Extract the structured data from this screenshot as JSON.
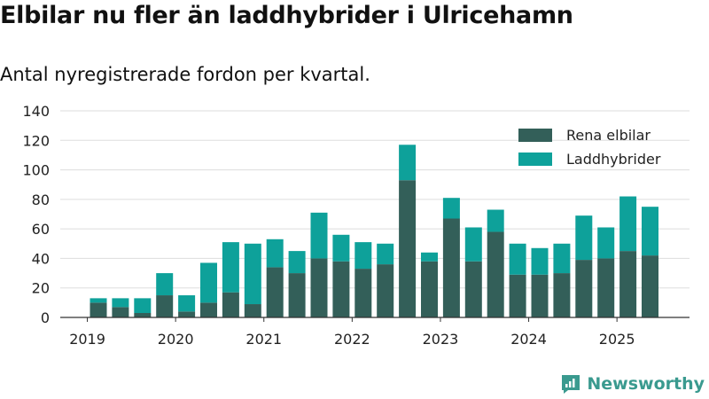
{
  "title": "Elbilar nu fler än laddhybrider i Ulricehamn",
  "subtitle": "Antal nyregistrerade fordon per kvartal.",
  "brand": "Newsworthy",
  "colors": {
    "electric": "#335f59",
    "hybrid": "#0ea19a",
    "grid": "#dddddd",
    "axis": "#333333",
    "text": "#222222"
  },
  "chart_data": {
    "type": "bar",
    "stacked": true,
    "title": "Elbilar nu fler än laddhybrider i Ulricehamn",
    "subtitle": "Antal nyregistrerade fordon per kvartal.",
    "xlabel": "",
    "ylabel": "",
    "ylim": [
      0,
      140
    ],
    "yticks": [
      "0",
      "20",
      "40",
      "60",
      "80",
      "100",
      "120",
      "140"
    ],
    "xtick_labels": [
      "2019",
      "2020",
      "2021",
      "2022",
      "2023",
      "2024",
      "2025"
    ],
    "legend_position": "top-right",
    "categories": [
      "2019 Q2",
      "2019 Q3",
      "2019 Q4",
      "2020 Q1",
      "2020 Q2",
      "2020 Q3",
      "2020 Q4",
      "2021 Q1",
      "2021 Q2",
      "2021 Q3",
      "2021 Q4",
      "2022 Q1",
      "2022 Q2",
      "2022 Q3",
      "2022 Q4",
      "2023 Q1",
      "2023 Q2",
      "2023 Q3",
      "2023 Q4",
      "2024 Q1",
      "2024 Q2",
      "2024 Q3",
      "2024 Q4",
      "2025 Q1",
      "2025 Q2",
      "2025 Q3"
    ],
    "series": [
      {
        "name": "Rena elbilar",
        "values": [
          10,
          7,
          3,
          15,
          4,
          10,
          17,
          9,
          34,
          30,
          40,
          38,
          33,
          36,
          93,
          38,
          67,
          38,
          58,
          29,
          29,
          30,
          39,
          40,
          45,
          42
        ]
      },
      {
        "name": "Laddhybrider",
        "values": [
          3,
          6,
          10,
          15,
          11,
          27,
          34,
          41,
          19,
          15,
          31,
          18,
          18,
          14,
          24,
          6,
          14,
          23,
          15,
          21,
          18,
          20,
          30,
          21,
          37,
          33
        ]
      }
    ]
  }
}
